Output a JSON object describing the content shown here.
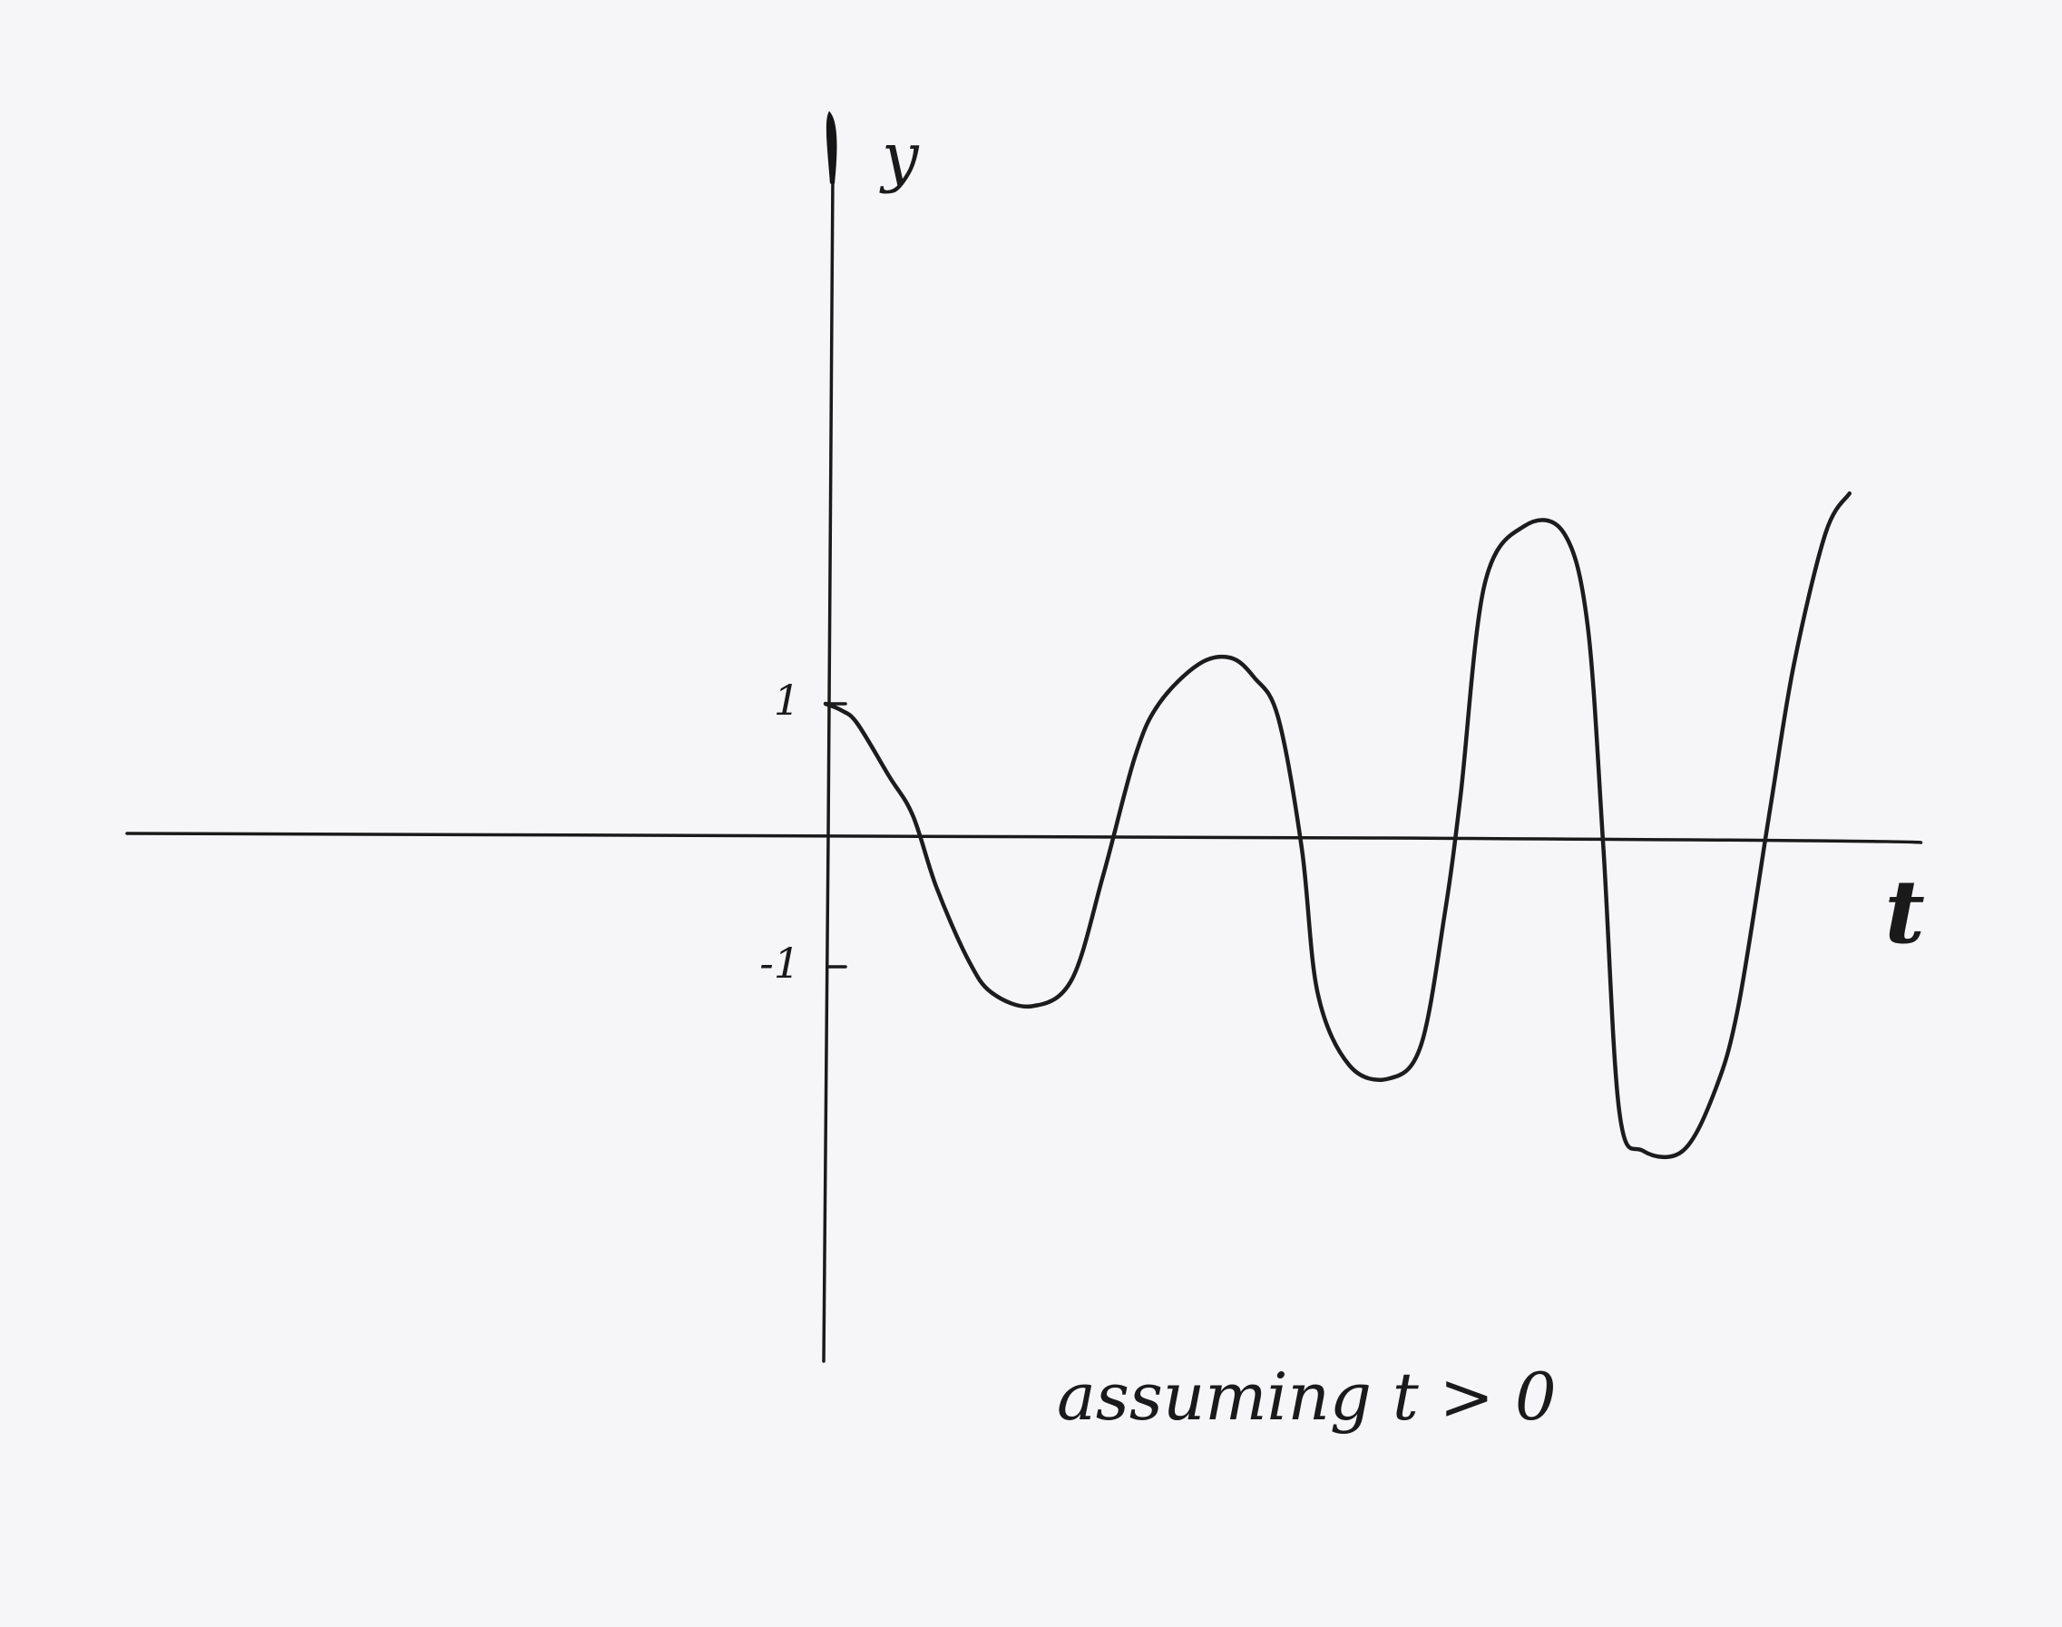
{
  "chart_data": {
    "type": "line",
    "title": "",
    "xlabel": "t",
    "ylabel": "y",
    "annotation": "assuming t > 0",
    "x_range": [
      -4.4,
      6.9
    ],
    "ylim": [
      -4,
      5.3
    ],
    "grid": false,
    "legend": "none",
    "yticks": [
      {
        "value": 1,
        "label": "1"
      },
      {
        "value": -1,
        "label": "-1"
      }
    ],
    "series": [
      {
        "color": "#1c1c1c",
        "points": [
          [
            0.0,
            1.0
          ],
          [
            0.1,
            0.95
          ],
          [
            0.2,
            0.85
          ],
          [
            0.4,
            0.45
          ],
          [
            0.55,
            0.15
          ],
          [
            0.7,
            -0.4
          ],
          [
            0.9,
            -0.95
          ],
          [
            1.05,
            -1.2
          ],
          [
            1.3,
            -1.3
          ],
          [
            1.55,
            -1.1
          ],
          [
            1.75,
            -0.3
          ],
          [
            1.95,
            0.6
          ],
          [
            2.1,
            1.0
          ],
          [
            2.35,
            1.3
          ],
          [
            2.55,
            1.35
          ],
          [
            2.7,
            1.2
          ],
          [
            2.85,
            0.9
          ],
          [
            3.0,
            -0.1
          ],
          [
            3.1,
            -1.2
          ],
          [
            3.3,
            -1.75
          ],
          [
            3.55,
            -1.85
          ],
          [
            3.75,
            -1.6
          ],
          [
            3.9,
            -0.6
          ],
          [
            4.0,
            0.3
          ],
          [
            4.15,
            1.9
          ],
          [
            4.4,
            2.35
          ],
          [
            4.65,
            2.3
          ],
          [
            4.8,
            1.6
          ],
          [
            4.9,
            -0.1
          ],
          [
            5.0,
            -2.1
          ],
          [
            5.15,
            -2.4
          ],
          [
            5.4,
            -2.4
          ],
          [
            5.6,
            -1.95
          ],
          [
            5.75,
            -1.3
          ],
          [
            5.95,
            0.2
          ],
          [
            6.1,
            1.3
          ],
          [
            6.3,
            2.3
          ],
          [
            6.45,
            2.6
          ]
        ]
      }
    ]
  }
}
